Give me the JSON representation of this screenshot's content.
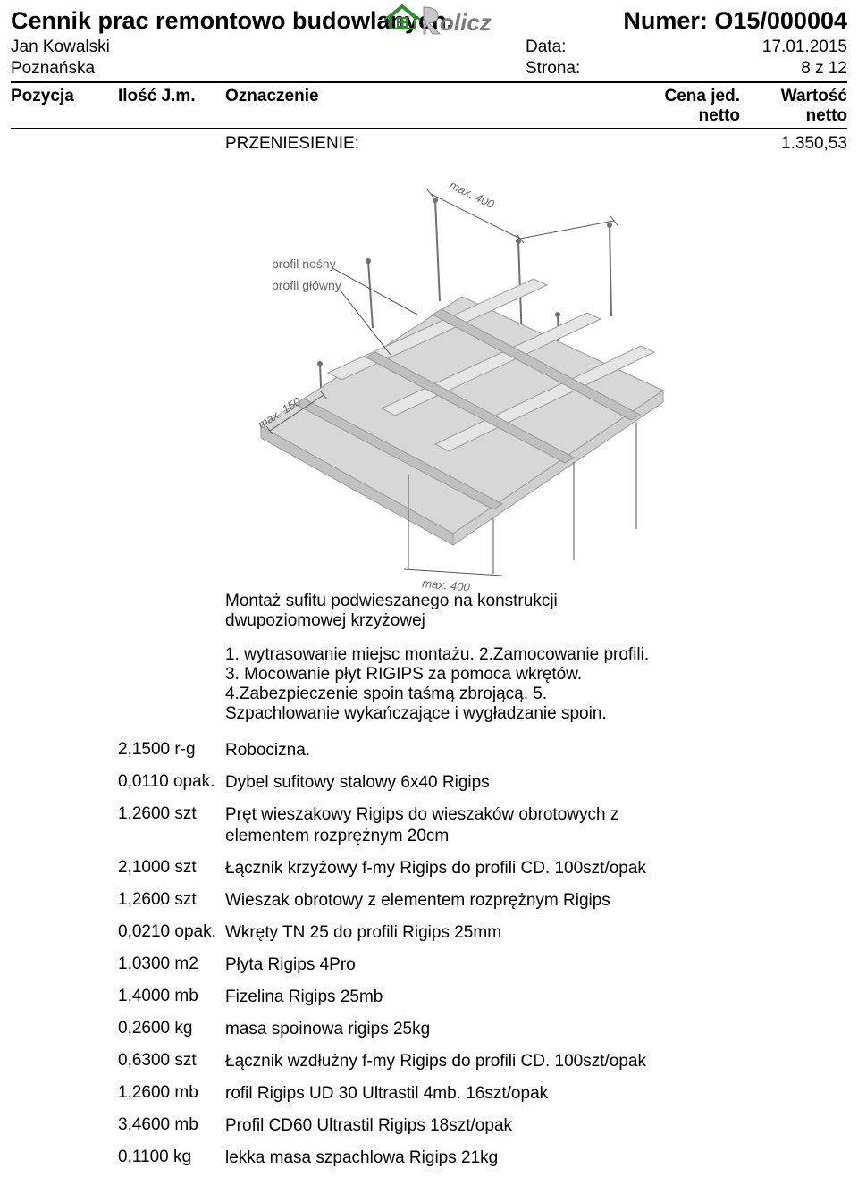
{
  "header": {
    "title_left": "Cennik prac remontowo budowlanych.",
    "number_label": "Numer:",
    "number_value": "O15/000004",
    "person": "Jan Kowalski",
    "address": "Poznańska",
    "date_label": "Data:",
    "date_value": "17.01.2015",
    "page_label": "Strona:",
    "page_value": "8 z 12",
    "logo_text": "Rolicz",
    "logo_colors": {
      "house_stroke": "#2e8b2e",
      "house_fill": "#ffffff",
      "r_fill": "#c8c8c8",
      "text_fill": "#7a7a7a"
    }
  },
  "columns": {
    "pozycja": "Pozycja",
    "ilosc": "Ilość J.m.",
    "oznaczenie": "Oznaczenie",
    "cena": "Cena jed.",
    "cena_sub": "netto",
    "wartosc": "Wartość",
    "wartosc_sub": "netto"
  },
  "carry": {
    "label": "PRZENIESIENIE:",
    "value": "1.350,53"
  },
  "diagram": {
    "labels": {
      "max_top": "max. 400",
      "max_bottom": "max. 400",
      "max_left": "max. 150",
      "profil_nosny": "profil nośny",
      "profil_glowny": "profil główny"
    },
    "colors": {
      "panel": "#d7d7d7",
      "panel_dark": "#c2c2c2",
      "profile": "#bfbfbf",
      "profile_light": "#e5e5e5",
      "profile_dark": "#9a9a9a",
      "line": "#555555",
      "anchor": "#707070",
      "text": "#666666"
    }
  },
  "intro": {
    "title": "Montaż sufitu podwieszanego na konstrukcji dwupoziomowej krzyżowej",
    "steps": "1. wytrasowanie miejsc montażu. 2.Zamocowanie profili. 3. Mocowanie płyt RIGIPS za pomoca wkrętów. 4.Zabezpieczenie spoin taśmą zbrojącą. 5. Szpachlowanie wykańczające i wygładzanie spoin."
  },
  "items": [
    {
      "qty": "2,1500 r-g",
      "desc": "Robocizna."
    },
    {
      "qty": "0,0110 opak.",
      "desc": "Dybel sufitowy stalowy 6x40 Rigips"
    },
    {
      "qty": "1,2600 szt",
      "desc": "Pręt wieszakowy Rigips do  wieszaków obrotowych z elementem rozprężnym 20cm"
    },
    {
      "qty": "2,1000 szt",
      "desc": "Łącznik krzyżowy f-my Rigips do profili CD. 100szt/opak"
    },
    {
      "qty": "1,2600 szt",
      "desc": "Wieszak obrotowy z elementem rozprężnym Rigips"
    },
    {
      "qty": "0,0210 opak.",
      "desc": "Wkręty TN 25 do profili Rigips 25mm"
    },
    {
      "qty": "1,0300 m2",
      "desc": "Płyta Rigips 4Pro"
    },
    {
      "qty": "1,4000 mb",
      "desc": "Fizelina Rigips 25mb"
    },
    {
      "qty": "0,2600 kg",
      "desc": "masa spoinowa rigips 25kg"
    },
    {
      "qty": "0,6300 szt",
      "desc": "Łącznik wzdłużny f-my Rigips do profili CD. 100szt/opak"
    },
    {
      "qty": "1,2600 mb",
      "desc": "rofil Rigips UD 30 Ultrastil 4mb. 16szt/opak"
    },
    {
      "qty": "3,4600 mb",
      "desc": "Profil CD60  Ultrastil Rigips 18szt/opak"
    },
    {
      "qty": "0,1100 kg",
      "desc": "lekka masa szpachlowa Rigips 21kg"
    }
  ]
}
